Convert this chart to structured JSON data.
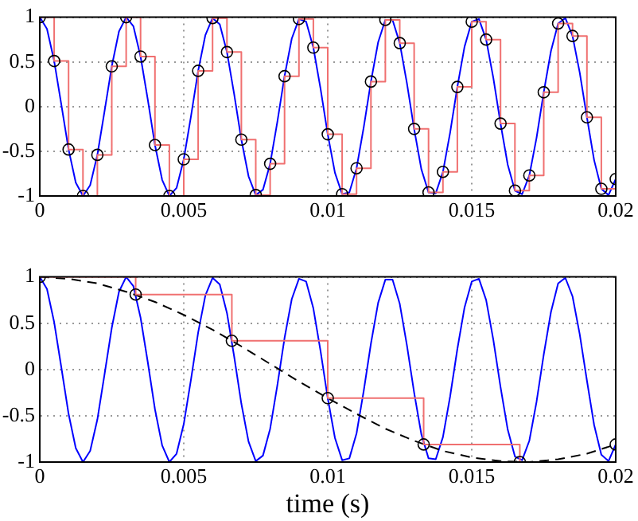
{
  "chart_data": [
    {
      "type": "line",
      "xlim": [
        0,
        0.02
      ],
      "ylim": [
        -1,
        1
      ],
      "xticks": [
        0,
        0.005,
        0.01,
        0.015,
        0.02
      ],
      "yticks": [
        -1,
        -0.5,
        0,
        0.5,
        1
      ],
      "grid": true,
      "legend": false,
      "series": [
        {
          "type": "line",
          "color": "#0000ff",
          "x": [
            0,
            0.00025,
            0.0005,
            0.00075,
            0.001,
            0.00125,
            0.0015,
            0.00175,
            0.002,
            0.00225,
            0.0025,
            0.00275,
            0.003,
            0.00325,
            0.0035,
            0.00375,
            0.004,
            0.00425,
            0.0045,
            0.00475,
            0.005,
            0.00525,
            0.0055,
            0.00575,
            0.006,
            0.00625,
            0.0065,
            0.00675,
            0.007,
            0.00725,
            0.0075,
            0.00775,
            0.008,
            0.00825,
            0.0085,
            0.00875,
            0.009,
            0.00925,
            0.0095,
            0.00975,
            0.01,
            0.01025,
            0.0105,
            0.01075,
            0.011,
            0.01125,
            0.0115,
            0.01175,
            0.012,
            0.01225,
            0.0125,
            0.01275,
            0.013,
            0.01325,
            0.0135,
            0.01375,
            0.014,
            0.01425,
            0.0145,
            0.01475,
            0.015,
            0.01525,
            0.0155,
            0.01575,
            0.016,
            0.01625,
            0.0165,
            0.01675,
            0.017,
            0.01725,
            0.0175,
            0.01775,
            0.018,
            0.01825,
            0.0185,
            0.01875,
            0.019,
            0.01925,
            0.0195,
            0.01975,
            0.02
          ],
          "values": [
            1,
            0.87,
            0.51,
            0.02,
            -0.48,
            -0.85,
            -1,
            -0.88,
            -0.54,
            -0.05,
            0.45,
            0.84,
            1,
            0.9,
            0.56,
            0.08,
            -0.43,
            -0.82,
            -1,
            -0.91,
            -0.59,
            -0.11,
            0.4,
            0.8,
            0.99,
            0.92,
            0.61,
            0.14,
            -0.37,
            -0.78,
            -0.99,
            -0.93,
            -0.64,
            -0.17,
            0.34,
            0.76,
            0.98,
            0.95,
            0.66,
            0.2,
            -0.31,
            -0.74,
            -0.98,
            -0.96,
            -0.69,
            -0.23,
            0.28,
            0.72,
            0.97,
            0.97,
            0.71,
            0.26,
            -0.25,
            -0.7,
            -0.96,
            -0.97,
            -0.73,
            -0.29,
            0.22,
            0.67,
            0.95,
            0.98,
            0.75,
            0.32,
            -0.19,
            -0.65,
            -0.94,
            -0.98,
            -0.77,
            -0.35,
            0.16,
            0.62,
            0.93,
            0.99,
            0.79,
            0.38,
            -0.12,
            -0.6,
            -0.92,
            -0.99,
            -0.81
          ]
        },
        {
          "type": "step",
          "color": "#f07070",
          "x": [
            0,
            0.0005,
            0.001,
            0.0015,
            0.002,
            0.0025,
            0.003,
            0.0035,
            0.004,
            0.0045,
            0.005,
            0.0055,
            0.006,
            0.0065,
            0.007,
            0.0075,
            0.008,
            0.0085,
            0.009,
            0.0095,
            0.01,
            0.0105,
            0.011,
            0.0115,
            0.012,
            0.0125,
            0.013,
            0.0135,
            0.014,
            0.0145,
            0.015,
            0.0155,
            0.016,
            0.0165,
            0.017,
            0.0175,
            0.018,
            0.0185,
            0.019,
            0.0195,
            0.02
          ],
          "values": [
            1,
            0.51,
            -0.48,
            -1,
            -0.54,
            0.45,
            1,
            0.56,
            -0.43,
            -1,
            -0.59,
            0.4,
            0.99,
            0.61,
            -0.37,
            -0.99,
            -0.64,
            0.34,
            0.98,
            0.66,
            -0.31,
            -0.98,
            -0.69,
            0.28,
            0.97,
            0.71,
            -0.25,
            -0.96,
            -0.73,
            0.22,
            0.95,
            0.75,
            -0.19,
            -0.94,
            -0.77,
            0.16,
            0.93,
            0.79,
            -0.12,
            -0.92,
            -0.81
          ]
        },
        {
          "type": "scatter",
          "color": "#000000",
          "marker": "circle",
          "x": [
            0,
            0.0005,
            0.001,
            0.0015,
            0.002,
            0.0025,
            0.003,
            0.0035,
            0.004,
            0.0045,
            0.005,
            0.0055,
            0.006,
            0.0065,
            0.007,
            0.0075,
            0.008,
            0.0085,
            0.009,
            0.0095,
            0.01,
            0.0105,
            0.011,
            0.0115,
            0.012,
            0.0125,
            0.013,
            0.0135,
            0.014,
            0.0145,
            0.015,
            0.0155,
            0.016,
            0.0165,
            0.017,
            0.0175,
            0.018,
            0.0185,
            0.019,
            0.0195,
            0.02
          ],
          "values": [
            1,
            0.51,
            -0.48,
            -1,
            -0.54,
            0.45,
            1,
            0.56,
            -0.43,
            -1,
            -0.59,
            0.4,
            0.99,
            0.61,
            -0.37,
            -0.99,
            -0.64,
            0.34,
            0.98,
            0.66,
            -0.31,
            -0.98,
            -0.69,
            0.28,
            0.97,
            0.71,
            -0.25,
            -0.96,
            -0.73,
            0.22,
            0.95,
            0.75,
            -0.19,
            -0.94,
            -0.77,
            0.16,
            0.93,
            0.79,
            -0.12,
            -0.92,
            -0.81
          ]
        }
      ]
    },
    {
      "type": "line",
      "xlabel": "time (s)",
      "xlim": [
        0,
        0.02
      ],
      "ylim": [
        -1,
        1
      ],
      "xticks": [
        0,
        0.005,
        0.01,
        0.015,
        0.02
      ],
      "yticks": [
        -1,
        -0.5,
        0,
        0.5,
        1
      ],
      "grid": true,
      "legend": false,
      "series": [
        {
          "type": "line",
          "color": "#0000ff",
          "x": [
            0,
            0.00025,
            0.0005,
            0.00075,
            0.001,
            0.00125,
            0.0015,
            0.00175,
            0.002,
            0.00225,
            0.0025,
            0.00275,
            0.003,
            0.00325,
            0.0035,
            0.00375,
            0.004,
            0.00425,
            0.0045,
            0.00475,
            0.005,
            0.00525,
            0.0055,
            0.00575,
            0.006,
            0.00625,
            0.0065,
            0.00675,
            0.007,
            0.00725,
            0.0075,
            0.00775,
            0.008,
            0.00825,
            0.0085,
            0.00875,
            0.009,
            0.00925,
            0.0095,
            0.00975,
            0.01,
            0.01025,
            0.0105,
            0.01075,
            0.011,
            0.01125,
            0.0115,
            0.01175,
            0.012,
            0.01225,
            0.0125,
            0.01275,
            0.013,
            0.01325,
            0.0135,
            0.01375,
            0.014,
            0.01425,
            0.0145,
            0.01475,
            0.015,
            0.01525,
            0.0155,
            0.01575,
            0.016,
            0.01625,
            0.0165,
            0.01675,
            0.017,
            0.01725,
            0.0175,
            0.01775,
            0.018,
            0.01825,
            0.0185,
            0.01875,
            0.019,
            0.01925,
            0.0195,
            0.01975,
            0.02
          ],
          "values": [
            1,
            0.87,
            0.51,
            0.02,
            -0.48,
            -0.85,
            -1,
            -0.88,
            -0.54,
            -0.05,
            0.45,
            0.84,
            1,
            0.9,
            0.56,
            0.08,
            -0.43,
            -0.82,
            -1,
            -0.91,
            -0.59,
            -0.11,
            0.4,
            0.8,
            0.99,
            0.92,
            0.61,
            0.14,
            -0.37,
            -0.78,
            -0.99,
            -0.93,
            -0.64,
            -0.17,
            0.34,
            0.76,
            0.98,
            0.95,
            0.66,
            0.2,
            -0.31,
            -0.74,
            -0.98,
            -0.96,
            -0.69,
            -0.23,
            0.28,
            0.72,
            0.97,
            0.97,
            0.71,
            0.26,
            -0.25,
            -0.7,
            -0.96,
            -0.97,
            -0.73,
            -0.29,
            0.22,
            0.67,
            0.95,
            0.98,
            0.75,
            0.32,
            -0.19,
            -0.65,
            -0.94,
            -0.98,
            -0.77,
            -0.35,
            0.16,
            0.62,
            0.93,
            0.99,
            0.79,
            0.38,
            -0.12,
            -0.6,
            -0.92,
            -0.99,
            -0.81
          ]
        },
        {
          "type": "line",
          "color": "#000000",
          "line_style": "dashed",
          "x": [
            0,
            0.001,
            0.002,
            0.003,
            0.004,
            0.005,
            0.006,
            0.007,
            0.008,
            0.009,
            0.01,
            0.011,
            0.012,
            0.013,
            0.014,
            0.015,
            0.016,
            0.017,
            0.018,
            0.019,
            0.02
          ],
          "values": [
            1,
            0.98,
            0.93,
            0.84,
            0.73,
            0.59,
            0.43,
            0.25,
            0.06,
            -0.13,
            -0.31,
            -0.48,
            -0.64,
            -0.77,
            -0.88,
            -0.95,
            -0.99,
            -1,
            -0.97,
            -0.91,
            -0.81
          ]
        },
        {
          "type": "step",
          "color": "#f07070",
          "x": [
            0,
            0.00333,
            0.00667,
            0.01,
            0.01333,
            0.01667,
            0.02
          ],
          "values": [
            1,
            0.81,
            0.31,
            -0.31,
            -0.81,
            -1,
            -0.81
          ]
        },
        {
          "type": "scatter",
          "color": "#000000",
          "marker": "circle",
          "x": [
            0,
            0.00333,
            0.00667,
            0.01,
            0.01333,
            0.01667,
            0.02
          ],
          "values": [
            1,
            0.81,
            0.31,
            -0.31,
            -0.81,
            -1,
            -0.81
          ]
        }
      ]
    }
  ]
}
